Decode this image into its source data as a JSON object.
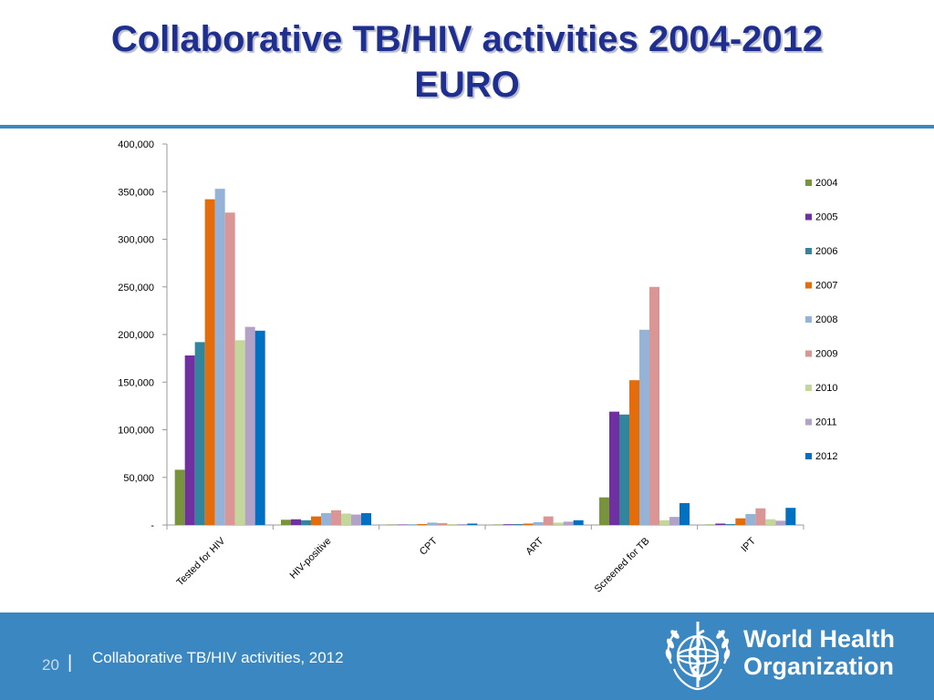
{
  "slide": {
    "title_line1": "Collaborative TB/HIV activities 2004-2012",
    "title_line2": "EURO",
    "page_number": "20",
    "page_separator": "|",
    "footer_text": "Collaborative TB/HIV activities, 2012"
  },
  "logo": {
    "org_line1": "World Health",
    "org_line2": "Organization"
  },
  "colors": {
    "title": "#1f2f8f",
    "banner": "#3a87c1"
  },
  "chart_data": {
    "type": "bar",
    "title": "",
    "xlabel": "",
    "ylabel": "",
    "ylim": [
      0,
      400000
    ],
    "yticks": [
      0,
      50000,
      100000,
      150000,
      200000,
      250000,
      300000,
      350000,
      400000
    ],
    "ytick_labels": [
      "-",
      "50,000",
      "100,000",
      "150,000",
      "200,000",
      "250,000",
      "300,000",
      "350,000",
      "400,000"
    ],
    "categories": [
      "Tested for HIV",
      "HIV-positive",
      "CPT",
      "ART",
      "Screened for TB",
      "IPT"
    ],
    "legend_position": "right",
    "grid": false,
    "series": [
      {
        "name": "2004",
        "color": "#77933c",
        "values": [
          58000,
          5500,
          500,
          500,
          29000,
          500
        ]
      },
      {
        "name": "2005",
        "color": "#7030a0",
        "values": [
          178000,
          6000,
          500,
          800,
          119000,
          1500
        ]
      },
      {
        "name": "2006",
        "color": "#31859c",
        "values": [
          192000,
          5000,
          500,
          1000,
          116000,
          1000
        ]
      },
      {
        "name": "2007",
        "color": "#e46c0a",
        "values": [
          342000,
          9000,
          1000,
          1500,
          152000,
          7000
        ]
      },
      {
        "name": "2008",
        "color": "#95b3d7",
        "values": [
          353000,
          12500,
          2500,
          3000,
          205000,
          11500
        ]
      },
      {
        "name": "2009",
        "color": "#d99694",
        "values": [
          328000,
          15500,
          2000,
          9000,
          250000,
          17500
        ]
      },
      {
        "name": "2010",
        "color": "#c3d69b",
        "values": [
          194000,
          12000,
          1000,
          2500,
          5000,
          6000
        ]
      },
      {
        "name": "2011",
        "color": "#b3a2c7",
        "values": [
          208000,
          11000,
          1000,
          3500,
          8500,
          4500
        ]
      },
      {
        "name": "2012",
        "color": "#0070c0",
        "values": [
          204000,
          12500,
          1500,
          5000,
          23000,
          18000
        ]
      }
    ]
  }
}
